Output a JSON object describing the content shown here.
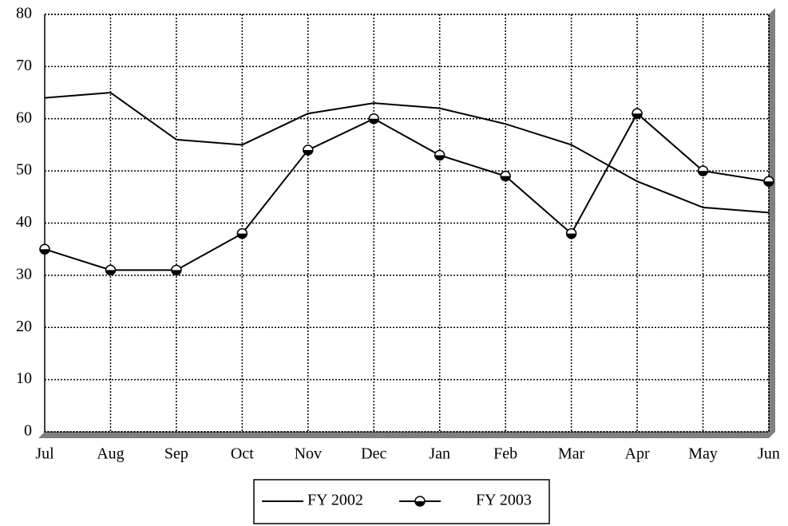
{
  "chart_data": {
    "type": "line",
    "categories": [
      "Jul",
      "Aug",
      "Sep",
      "Oct",
      "Nov",
      "Dec",
      "Jan",
      "Feb",
      "Mar",
      "Apr",
      "May",
      "Jun"
    ],
    "series": [
      {
        "name": "FY 2002",
        "color": "#000000",
        "marker": false,
        "values": [
          64,
          65,
          56,
          55,
          61,
          63,
          62,
          59,
          55,
          48,
          43,
          42
        ]
      },
      {
        "name": "FY 2003",
        "color": "#000000",
        "marker": true,
        "values": [
          35,
          31,
          31,
          38,
          54,
          60,
          53,
          49,
          38,
          61,
          50,
          48
        ]
      }
    ],
    "ylim": [
      0,
      80
    ],
    "yticks": [
      0,
      10,
      20,
      30,
      40,
      50,
      60,
      70,
      80
    ],
    "grid": true,
    "legend": "bottom"
  }
}
